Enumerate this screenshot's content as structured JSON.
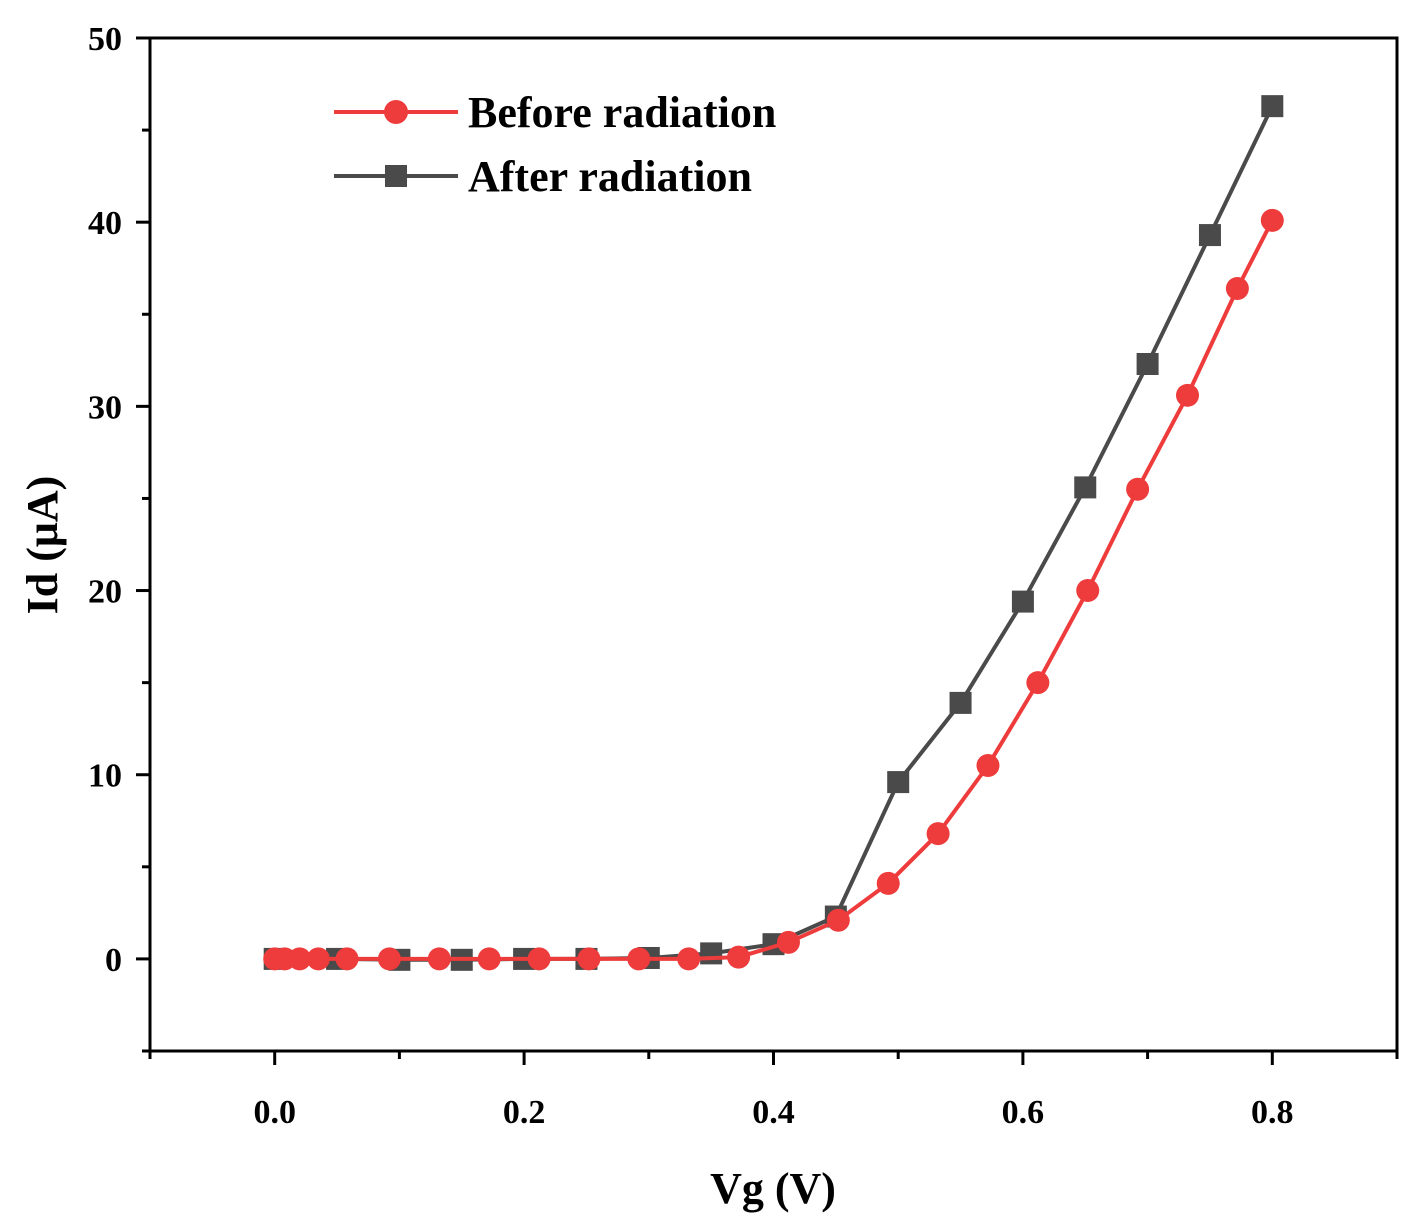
{
  "chart_data": {
    "type": "line",
    "xlabel": "Vg (V)",
    "ylabel": "Id (μA)",
    "xlim": [
      -0.1,
      0.9
    ],
    "ylim": [
      -5,
      50
    ],
    "x_ticks": [
      0.0,
      0.2,
      0.4,
      0.6,
      0.8
    ],
    "x_tick_labels": [
      "0.0",
      "0.2",
      "0.4",
      "0.6",
      "0.8"
    ],
    "y_ticks": [
      0,
      10,
      20,
      30,
      40,
      50
    ],
    "y_tick_labels": [
      "0",
      "10",
      "20",
      "30",
      "40",
      "50"
    ],
    "grid": false,
    "legend_position": "top-left",
    "series": [
      {
        "name": "Before radiation",
        "color": "#ee3b3b",
        "marker": "circle",
        "x": [
          0.0,
          0.008,
          0.02,
          0.035,
          0.058,
          0.092,
          0.132,
          0.172,
          0.212,
          0.252,
          0.292,
          0.332,
          0.372,
          0.412,
          0.452,
          0.492,
          0.532,
          0.572,
          0.612,
          0.652,
          0.692,
          0.732,
          0.772,
          0.8
        ],
        "y": [
          0.0,
          0.0,
          0.0,
          0.0,
          0.0,
          0.0,
          0.0,
          0.0,
          0.0,
          0.0,
          0.0,
          0.0,
          0.1,
          0.9,
          2.1,
          4.1,
          6.8,
          10.5,
          15.0,
          20.0,
          25.5,
          30.6,
          36.4,
          40.1
        ]
      },
      {
        "name": "After radiation",
        "color": "#4a4a4a",
        "marker": "square",
        "x": [
          0.0,
          0.05,
          0.1,
          0.15,
          0.2,
          0.25,
          0.3,
          0.35,
          0.4,
          0.45,
          0.5,
          0.55,
          0.6,
          0.65,
          0.7,
          0.75,
          0.8
        ],
        "y": [
          0.0,
          0.0,
          -0.05,
          -0.05,
          0.0,
          0.0,
          0.05,
          0.3,
          0.8,
          2.3,
          9.6,
          13.9,
          19.4,
          25.6,
          32.3,
          39.3,
          46.3
        ]
      }
    ]
  }
}
